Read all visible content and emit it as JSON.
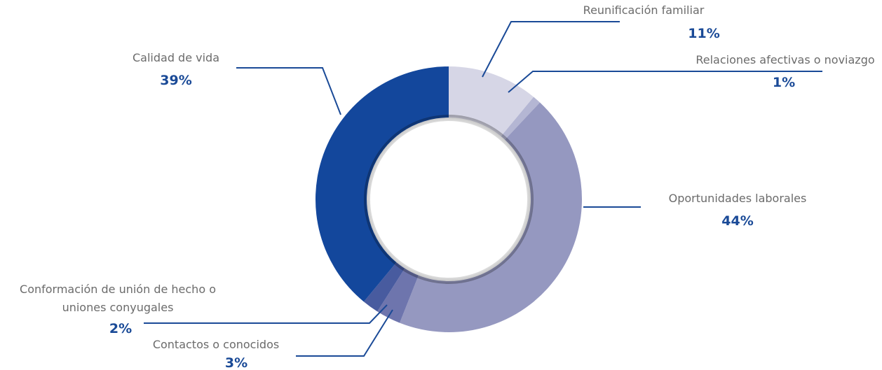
{
  "chart_data": {
    "type": "pie",
    "donut": true,
    "title": "",
    "legend": "none",
    "label_color": "#1a4a97",
    "line_color": "#1a4a97",
    "slices": [
      {
        "label": "Reunificación familiar",
        "value": 11,
        "value_label": "11%",
        "color": "#d6d6e6"
      },
      {
        "label": "Relaciones afectivas o noviazgo",
        "value": 1,
        "value_label": "1%",
        "color": "#b4b6d3"
      },
      {
        "label": "Oportunidades laborales",
        "value": 44,
        "value_label": "44%",
        "color": "#9598c0"
      },
      {
        "label": "Contactos o conocidos",
        "value": 3,
        "value_label": "3%",
        "color": "#6e75ad"
      },
      {
        "label": "Conformación de unión de hecho o uniones conyugales",
        "value": 2,
        "value_label": "2%",
        "color": "#485b9f"
      },
      {
        "label": "Calidad de vida",
        "value": 39,
        "value_label": "39%",
        "color": "#13479c"
      }
    ]
  }
}
